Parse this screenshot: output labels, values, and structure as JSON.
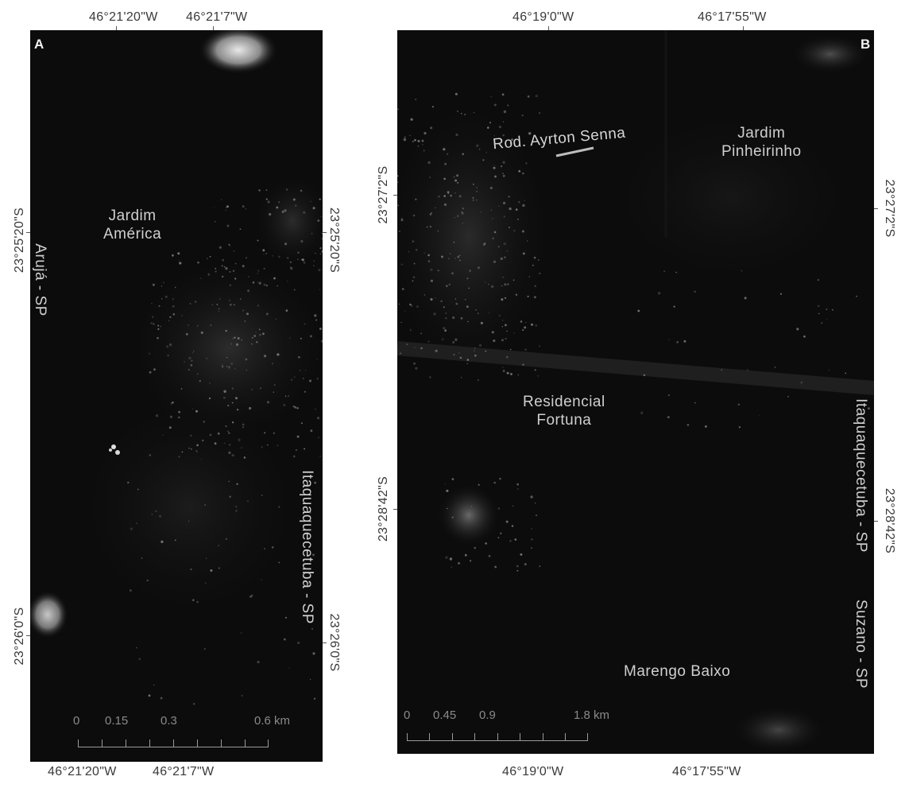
{
  "panel_a": {
    "letter": "A",
    "top_coords": [
      "46°21'20\"W",
      "46°21'7\"W"
    ],
    "bottom_coords": [
      "46°21'20\"W",
      "46°21'7\"W"
    ],
    "left_coords": [
      "23°25'20\"S",
      "23°26'0\"S"
    ],
    "right_coords": [
      "23°25'20\"S",
      "23°26'0\"S"
    ],
    "labels": {
      "jardim_america": [
        "Jardim",
        "América"
      ],
      "aruja": "Arujá - SP",
      "itaquaquecetuba": "Itaquaquecetuba - SP"
    },
    "scale": [
      "0",
      "0.15",
      "0.3",
      "0.6 km"
    ]
  },
  "panel_b": {
    "letter": "B",
    "top_coords": [
      "46°19'0\"W",
      "46°17'55\"W"
    ],
    "bottom_coords": [
      "46°19'0\"W",
      "46°17'55\"W"
    ],
    "left_coords": [
      "23°27'2\"S",
      "23°28'42\"S"
    ],
    "right_coords": [
      "23°27'2\"S",
      "23°28'42\"S"
    ],
    "labels": {
      "rod_ayrton_senna": "Rod. Ayrton Senna",
      "jardim_pinheirinho": [
        "Jardim",
        "Pinheirinho"
      ],
      "residencial_fortuna": [
        "Residencial",
        "Fortuna"
      ],
      "marengo_baixo": "Marengo Baixo",
      "itaquaquecetuba": "Itaquaquecetuba - SP",
      "suzano": "Suzano - SP"
    },
    "scale": [
      "0",
      "0.45",
      "0.9",
      "1.8 km"
    ]
  }
}
